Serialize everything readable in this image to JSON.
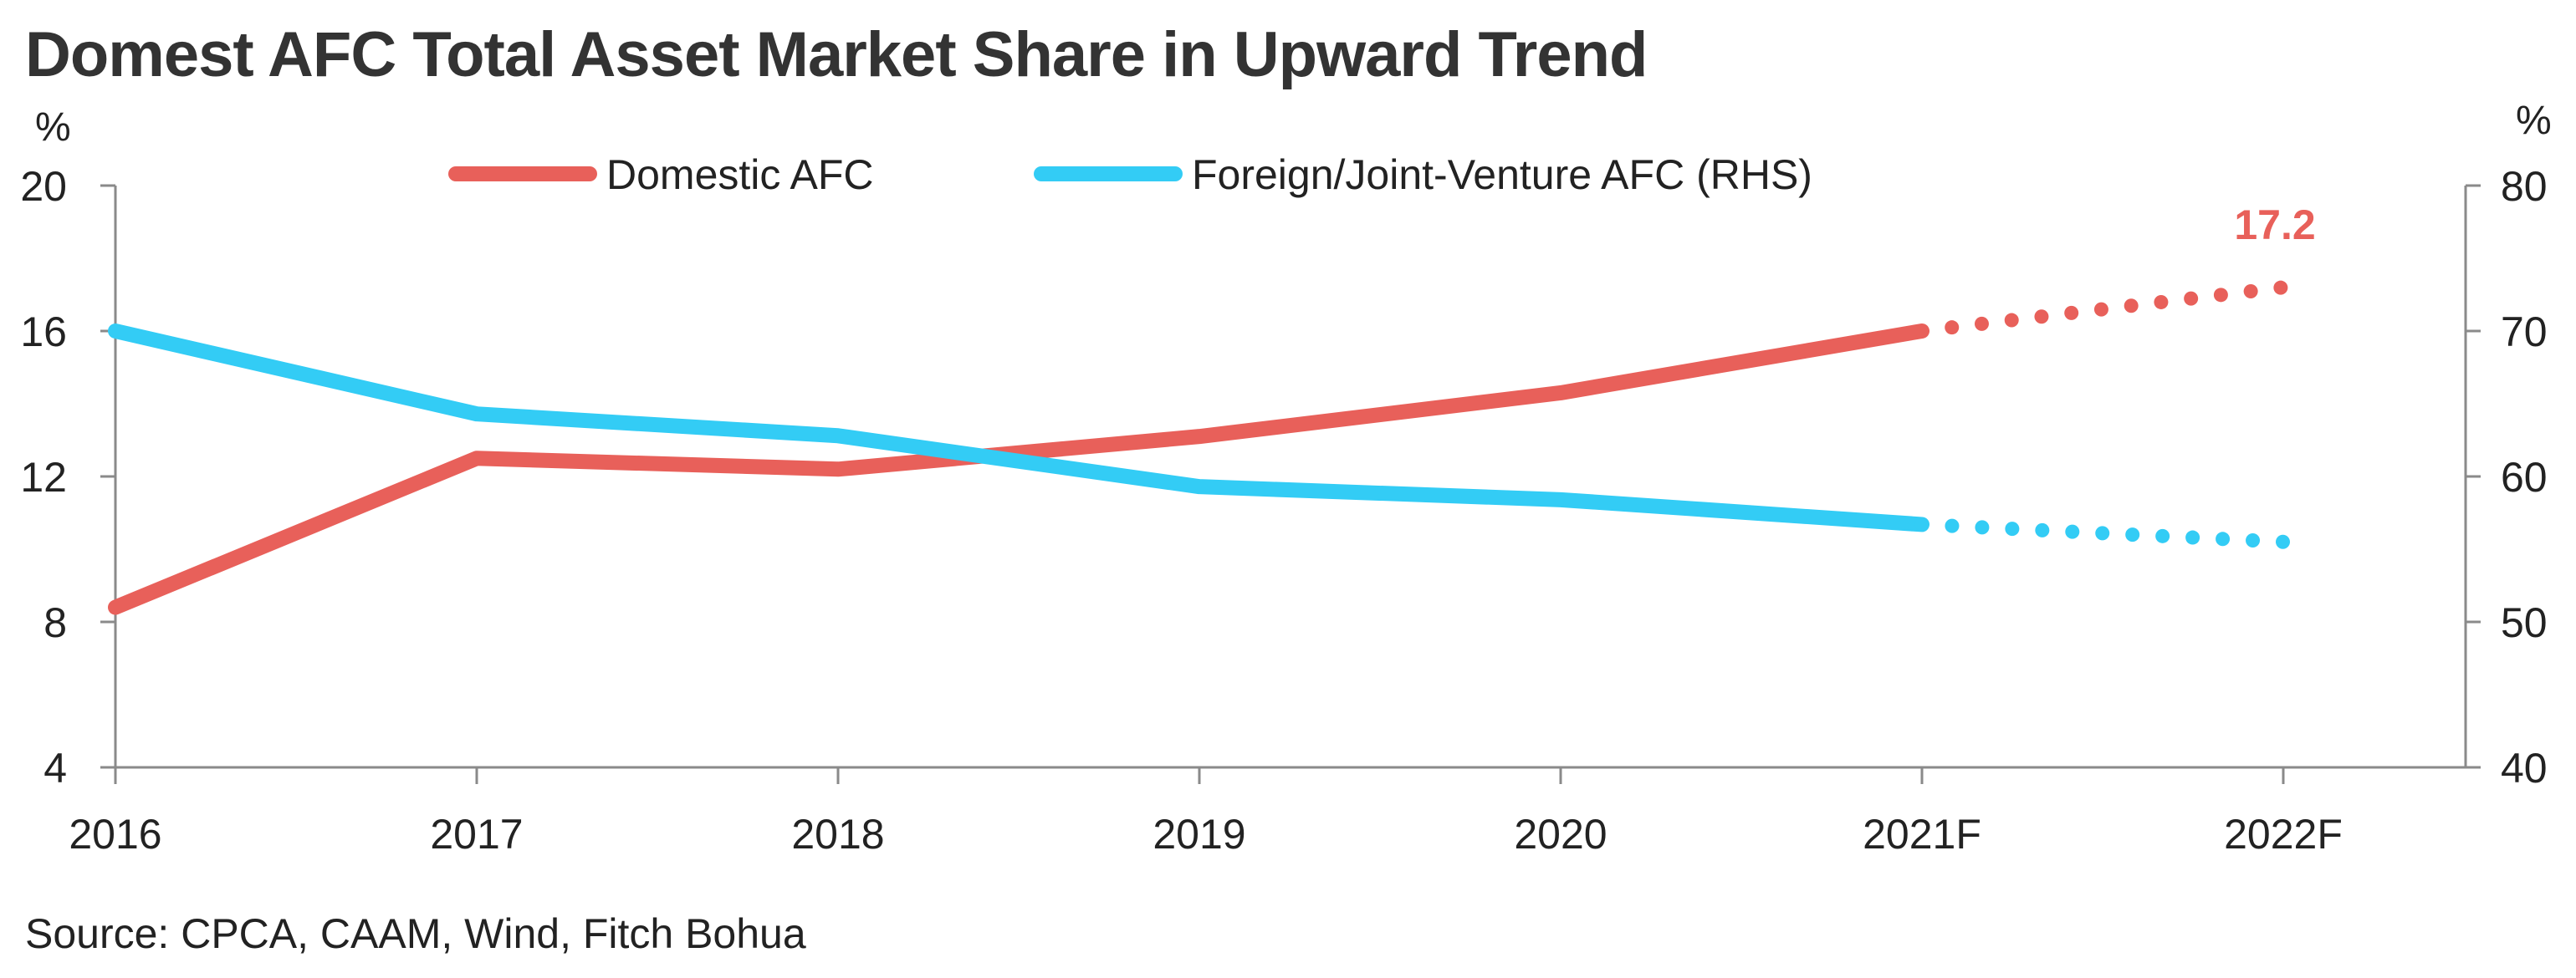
{
  "title": "Domest AFC Total Asset Market Share in Upward Trend",
  "source": "Source: CPCA, CAAM, Wind, Fitch Bohua",
  "chart_data": {
    "type": "line",
    "title": "Domest AFC Total Asset Market Share in Upward Trend",
    "x": [
      "2016",
      "2017",
      "2018",
      "2019",
      "2020",
      "2021F",
      "2022F"
    ],
    "y_left": {
      "unit": "%",
      "ylim": [
        4,
        20
      ],
      "ticks": [
        "4",
        "8",
        "12",
        "16",
        "20"
      ]
    },
    "y_right": {
      "unit": "%",
      "ylim": [
        40,
        80
      ],
      "ticks": [
        "40",
        "50",
        "60",
        "70",
        "80"
      ]
    },
    "grid": false,
    "legend_position": "top",
    "series": [
      {
        "name": "Domestic AFC",
        "axis": "left",
        "color": "#e8605a",
        "values": [
          8.4,
          12.5,
          12.2,
          13.1,
          14.3,
          16.0,
          17.2
        ],
        "forecast_from_index": 5,
        "data_label": {
          "index": 6,
          "text": "17.2"
        }
      },
      {
        "name": "Foreign/Joint-Venture AFC (RHS)",
        "axis": "right",
        "color": "#33ccf5",
        "values": [
          70.0,
          64.3,
          62.8,
          59.3,
          58.4,
          56.7,
          55.5
        ],
        "forecast_from_index": 5
      }
    ]
  }
}
